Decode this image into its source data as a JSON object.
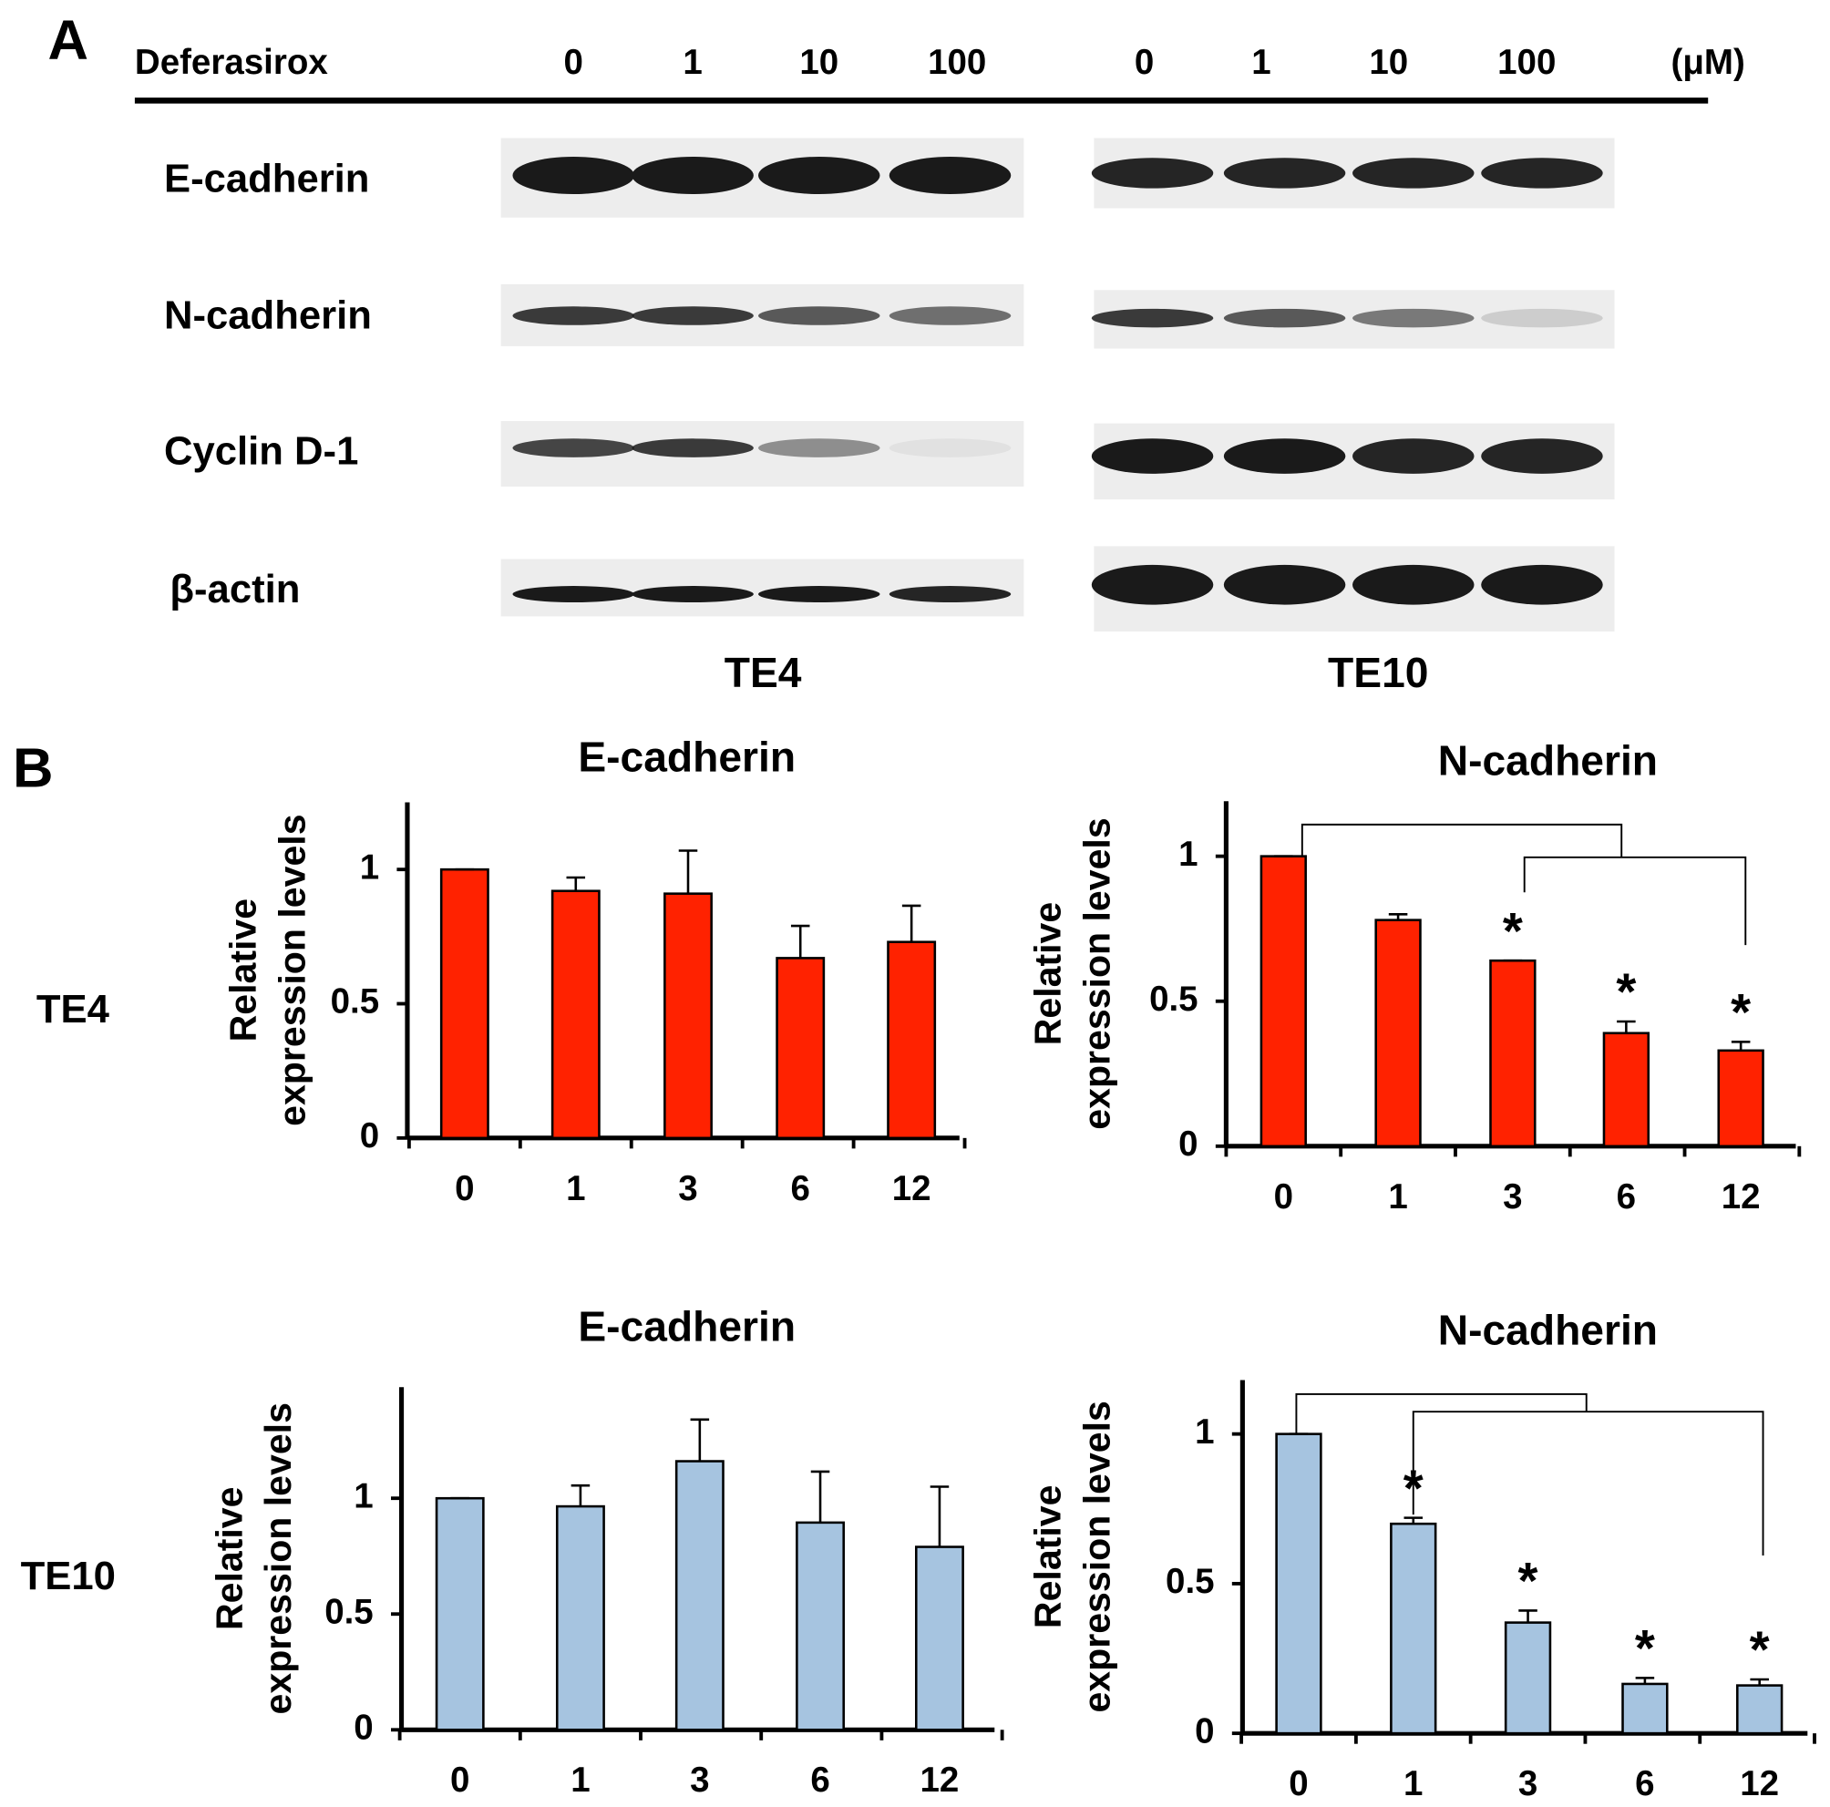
{
  "panel_a": {
    "label": "A",
    "treatment": "Deferasirox",
    "unit": "(μM)",
    "cell_lines": [
      {
        "name": "TE4",
        "doses": [
          "0",
          "1",
          "10",
          "100"
        ]
      },
      {
        "name": "TE10",
        "doses": [
          "0",
          "1",
          "10",
          "100"
        ]
      }
    ],
    "proteins": [
      "E-cadherin",
      "N-cadherin",
      "Cyclin D-1",
      "β-actin"
    ]
  },
  "panel_b": {
    "label": "B",
    "rows": [
      "TE4",
      "TE10"
    ]
  },
  "chart_data": [
    {
      "type": "bar",
      "title": "E-cadherin",
      "ylabel": [
        "Relative",
        "expression levels"
      ],
      "categories": [
        "0",
        "1",
        "3",
        "6",
        "12"
      ],
      "values": [
        1.0,
        0.92,
        0.91,
        0.67,
        0.73
      ],
      "errors": [
        0,
        0.05,
        0.16,
        0.12,
        0.135
      ],
      "color": "#ff2200",
      "ylim": [
        0,
        1.25
      ],
      "yticks": [
        0,
        0.5,
        1
      ]
    },
    {
      "type": "bar",
      "title": "N-cadherin",
      "ylabel": [
        "Relative",
        "expression levels"
      ],
      "categories": [
        "0",
        "1",
        "3",
        "6",
        "12"
      ],
      "values": [
        1.0,
        0.78,
        0.64,
        0.39,
        0.33
      ],
      "errors": [
        0,
        0.02,
        0,
        0.04,
        0.03
      ],
      "annotations": [
        null,
        null,
        "*",
        "*",
        "*"
      ],
      "color": "#ff2200",
      "ylim": [
        0,
        1.19
      ],
      "yticks": [
        0,
        0.5,
        1
      ]
    },
    {
      "type": "bar",
      "title": "E-cadherin",
      "ylabel": [
        "Relative",
        "expression levels"
      ],
      "categories": [
        "0",
        "1",
        "3",
        "6",
        "12"
      ],
      "values": [
        1.0,
        0.965,
        1.16,
        0.895,
        0.79
      ],
      "errors": [
        0,
        0.09,
        0.18,
        0.22,
        0.26
      ],
      "color": "#a6c4e0",
      "ylim": [
        0,
        1.48
      ],
      "yticks": [
        0,
        0.5,
        1
      ]
    },
    {
      "type": "bar",
      "title": "N-cadherin",
      "ylabel": [
        "Relative",
        "expression levels"
      ],
      "categories": [
        "0",
        "1",
        "3",
        "6",
        "12"
      ],
      "values": [
        1.0,
        0.7,
        0.37,
        0.165,
        0.16
      ],
      "errors": [
        0,
        0.02,
        0.04,
        0.02,
        0.02
      ],
      "annotations": [
        null,
        "*",
        "*",
        "*",
        "*"
      ],
      "color": "#a6c4e0",
      "ylim": [
        0,
        1.18
      ],
      "yticks": [
        0,
        0.5,
        1
      ]
    }
  ]
}
